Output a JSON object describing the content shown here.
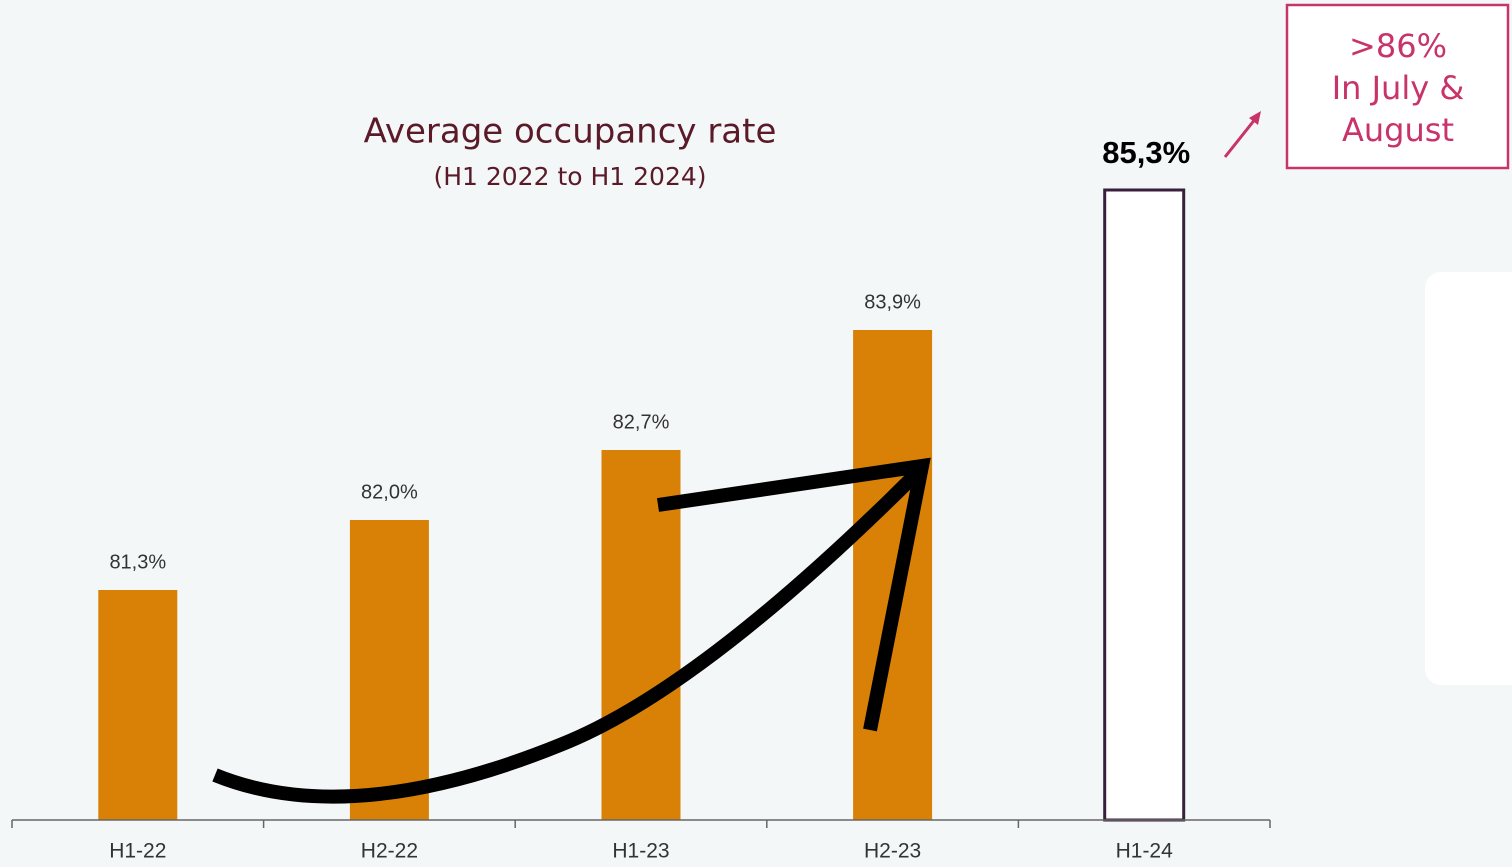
{
  "chart_data": {
    "type": "bar",
    "title": "Average occupancy rate",
    "subtitle": "(H1 2022 to H1 2024)",
    "categories": [
      "H1-22",
      "H2-22",
      "H1-23",
      "H2-23",
      "H1-24"
    ],
    "values": [
      81.3,
      82.0,
      82.7,
      83.9,
      85.3
    ],
    "value_labels": [
      "81,3%",
      "82,0%",
      "82,7%",
      "83,9%",
      "85,3%"
    ],
    "colors": [
      "#d98106",
      "#d98106",
      "#d98106",
      "#d98106",
      "#ffffff"
    ],
    "edgecolors": [
      null,
      null,
      null,
      null,
      "#3a1f3d"
    ],
    "ylim": [
      79,
      86.5
    ],
    "annotation": [
      ">86%",
      "In July &",
      "August"
    ]
  }
}
